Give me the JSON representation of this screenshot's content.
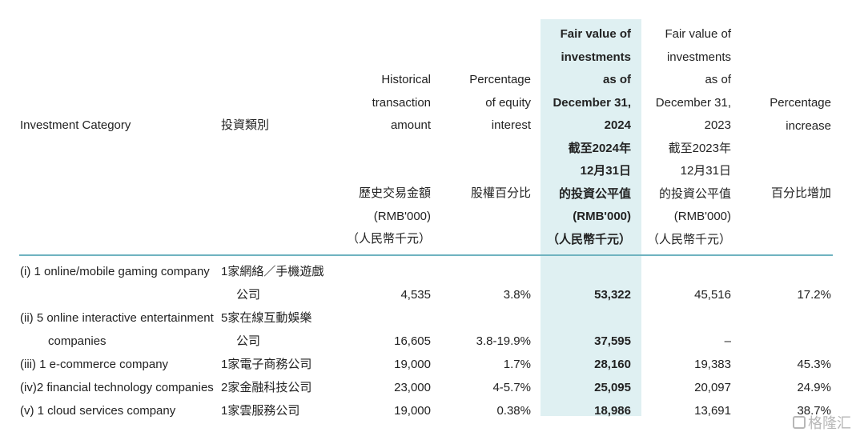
{
  "headers": {
    "category_en": "Investment Category",
    "category_zh": "投資類別",
    "historical": "Historical\ntransaction\namount",
    "historical_zh": "歷史交易金額",
    "historical_unit": "(RMB'000)",
    "historical_unit_zh": "（人民幣千元）",
    "equity": "Percentage\nof equity\ninterest",
    "equity_zh": "股權百分比",
    "fv2024": "Fair value of\ninvestments\nas of\nDecember 31,\n2024\n截至2024年\n12月31日\n的投資公平值\n(RMB'000)\n（人民幣千元）",
    "fv2023": "Fair value of\ninvestments\nas of\nDecember 31,\n2023\n截至2023年\n12月31日\n的投資公平值\n(RMB'000)\n（人民幣千元）",
    "increase": "Percentage\nincrease",
    "increase_zh": "百分比增加"
  },
  "rows": [
    {
      "en1": "(i)  1 online/mobile gaming company",
      "en2": "",
      "zh1": "1家網絡／手機遊戲",
      "zh2": "公司",
      "amount": "4,535",
      "equity": "3.8%",
      "fv2024": "53,322",
      "fv2023": "45,516",
      "increase": "17.2%"
    },
    {
      "en1": "(ii) 5 online interactive entertainment",
      "en2": "companies",
      "zh1": "5家在線互動娛樂",
      "zh2": "公司",
      "amount": "16,605",
      "equity": "3.8-19.9%",
      "fv2024": "37,595",
      "fv2023": "–",
      "increase": ""
    },
    {
      "en1": "(iii) 1 e-commerce company",
      "en2": "",
      "zh1": "1家電子商務公司",
      "zh2": "",
      "amount": "19,000",
      "equity": "1.7%",
      "fv2024": "28,160",
      "fv2023": "19,383",
      "increase": "45.3%"
    },
    {
      "en1": "(iv)2 financial technology companies",
      "en2": "",
      "zh1": "2家金融科技公司",
      "zh2": "",
      "amount": "23,000",
      "equity": "4-5.7%",
      "fv2024": "25,095",
      "fv2023": "20,097",
      "increase": "24.9%"
    },
    {
      "en1": "(v)  1 cloud services company",
      "en2": "",
      "zh1": "1家雲服務公司",
      "zh2": "",
      "amount": "19,000",
      "equity": "0.38%",
      "fv2024": "18,986",
      "fv2023": "13,691",
      "increase": "38.7%"
    }
  ],
  "watermark": "格隆汇",
  "colors": {
    "highlight": "#dff0f2",
    "rule": "#6fb3c0"
  }
}
